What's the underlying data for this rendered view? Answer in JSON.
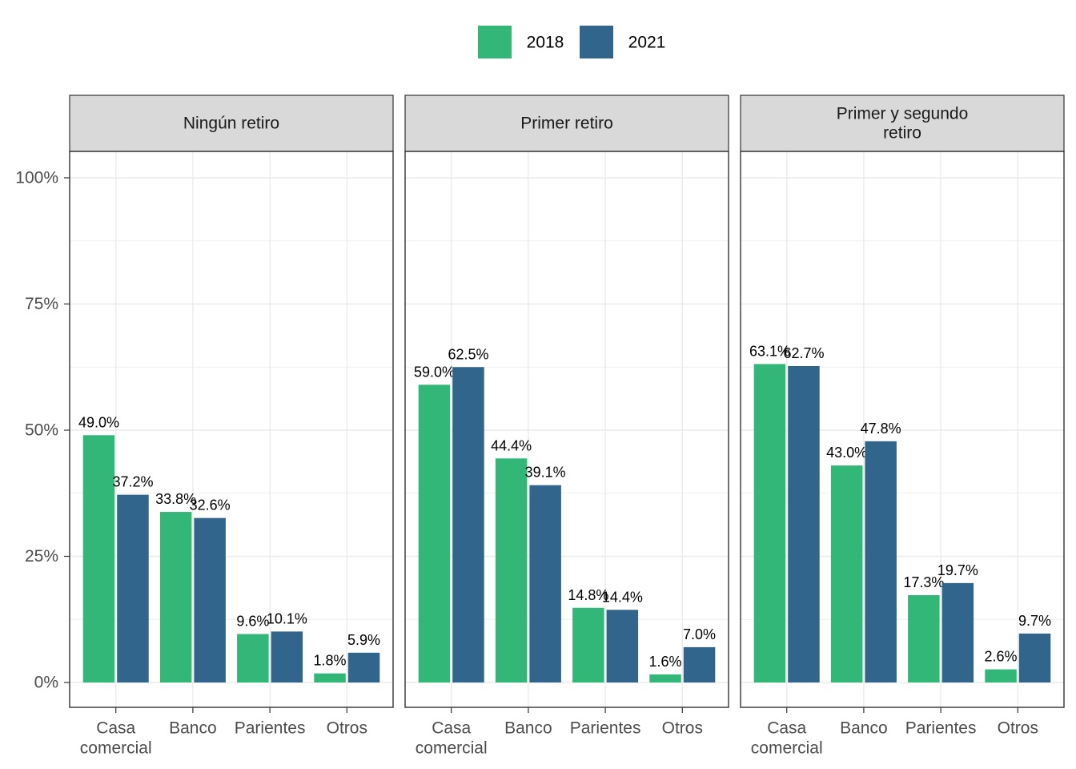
{
  "chart_data": {
    "type": "bar",
    "categories": [
      [
        "Casa",
        "comercial"
      ],
      [
        "Banco"
      ],
      [
        "Parientes"
      ],
      [
        "Otros"
      ]
    ],
    "ylim": [
      0,
      1.0
    ],
    "y_ticks": [
      0,
      0.25,
      0.5,
      0.75,
      1.0
    ],
    "y_tick_labels": [
      "0%",
      "25%",
      "50%",
      "75%",
      "100%"
    ],
    "legend": {
      "position": "top",
      "items": [
        {
          "label": "2018",
          "color": "#33b779"
        },
        {
          "label": "2021",
          "color": "#31658c"
        }
      ]
    },
    "grid": true,
    "panels": [
      {
        "title": [
          "Ningún retiro"
        ],
        "series": [
          {
            "name": "2018",
            "values": [
              0.49,
              0.338,
              0.096,
              0.018
            ],
            "labels": [
              "49.0%",
              "33.8%",
              "9.6%",
              "1.8%"
            ]
          },
          {
            "name": "2021",
            "values": [
              0.372,
              0.326,
              0.101,
              0.059
            ],
            "labels": [
              "37.2%",
              "32.6%",
              "10.1%",
              "5.9%"
            ]
          }
        ]
      },
      {
        "title": [
          "Primer retiro"
        ],
        "series": [
          {
            "name": "2018",
            "values": [
              0.59,
              0.444,
              0.148,
              0.016
            ],
            "labels": [
              "59.0%",
              "44.4%",
              "14.8%",
              "1.6%"
            ]
          },
          {
            "name": "2021",
            "values": [
              0.625,
              0.391,
              0.144,
              0.07
            ],
            "labels": [
              "62.5%",
              "39.1%",
              "14.4%",
              "7.0%"
            ]
          }
        ]
      },
      {
        "title": [
          "Primer y segundo",
          "retiro"
        ],
        "series": [
          {
            "name": "2018",
            "values": [
              0.631,
              0.43,
              0.173,
              0.026
            ],
            "labels": [
              "63.1%",
              "43.0%",
              "17.3%",
              "2.6%"
            ]
          },
          {
            "name": "2021",
            "values": [
              0.627,
              0.478,
              0.197,
              0.097
            ],
            "labels": [
              "62.7%",
              "47.8%",
              "19.7%",
              "9.7%"
            ]
          }
        ]
      }
    ]
  }
}
